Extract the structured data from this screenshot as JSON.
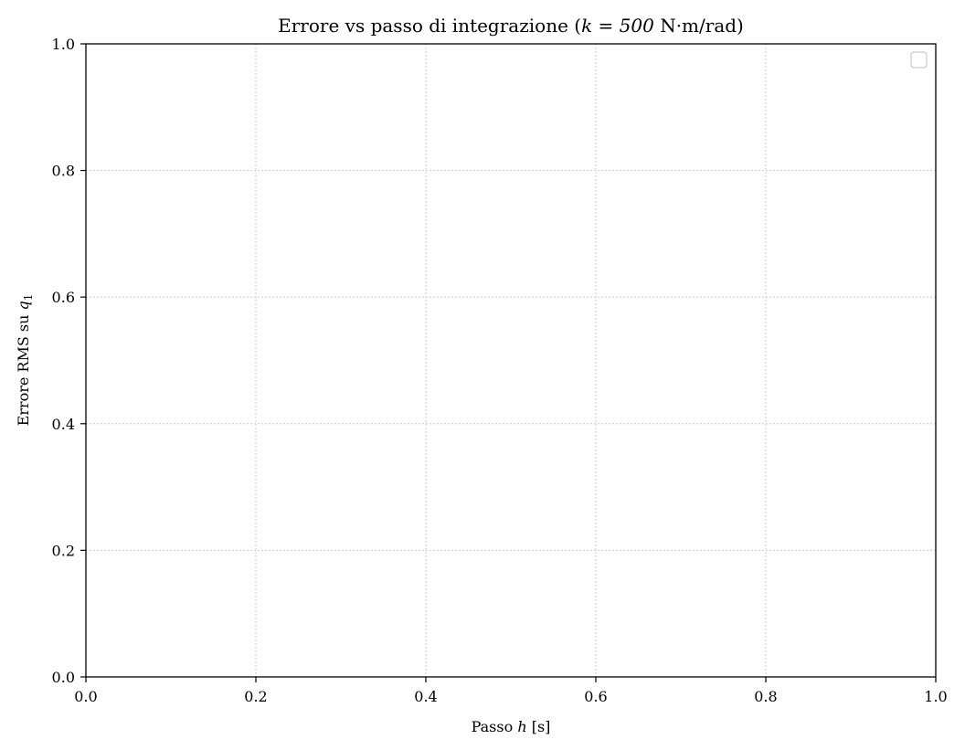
{
  "chart_data": {
    "type": "line",
    "title": {
      "prefix": "Errore vs passo di integrazione (",
      "math": "k = 500",
      "suffix": " N·m/rad)"
    },
    "xlabel": {
      "prefix": "Passo ",
      "math": "h",
      "suffix": " [s]"
    },
    "ylabel": {
      "prefix": "Errore RMS su ",
      "math": "q",
      "math_sub": "1"
    },
    "xlim": [
      0.0,
      1.0
    ],
    "ylim": [
      0.0,
      1.0
    ],
    "xticks": [
      "0.0",
      "0.2",
      "0.4",
      "0.6",
      "0.8",
      "1.0"
    ],
    "yticks": [
      "0.0",
      "0.2",
      "0.4",
      "0.6",
      "0.8",
      "1.0"
    ],
    "series": [],
    "grid": true,
    "grid_style": "dotted",
    "legend": {
      "placement": "top-right",
      "entries": []
    },
    "colors": {
      "axis": "#000000",
      "grid": "#cccccc",
      "legend_border": "#cccccc"
    }
  }
}
